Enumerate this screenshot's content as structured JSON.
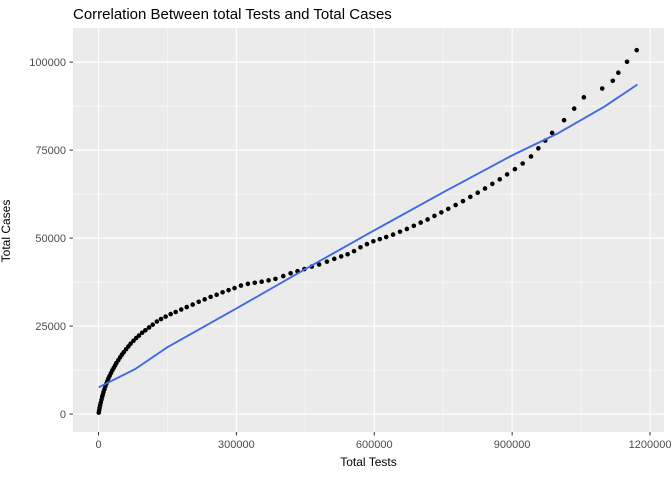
{
  "title": "Correlation Between total Tests and Total Cases",
  "colors": {
    "plot_bg": "#FFFFFF",
    "panel_bg": "#EBEBEB",
    "grid_major": "#FFFFFF",
    "grid_minor": "#F5F5F5",
    "point": "#000000",
    "smooth_line": "#4169E1",
    "tick_label": "#4D4D4D",
    "tick_mark": "#333333",
    "title_color": "#000000",
    "axis_title_color": "#000000"
  },
  "chart_data": {
    "type": "scatter",
    "title": "Correlation Between total Tests and Total Cases",
    "xlabel": "Total Tests",
    "ylabel": "Total Cases",
    "grid": true,
    "legend_position": "none",
    "xlim": [
      -55500,
      1230400
    ],
    "ylim": [
      -5100,
      109700
    ],
    "x_ticks": [
      0,
      300000,
      600000,
      900000,
      1200000
    ],
    "x_tick_labels": [
      "0",
      "300000",
      "600000",
      "900000",
      "1200000"
    ],
    "y_ticks": [
      0,
      25000,
      50000,
      75000,
      100000
    ],
    "y_tick_labels": [
      "0",
      "25000",
      "50000",
      "75000",
      "100000"
    ],
    "x_minor_ticks": [
      150000,
      450000,
      750000,
      1050000
    ],
    "y_minor_ticks": [
      12500,
      37500,
      62500,
      87500
    ],
    "points": [
      [
        500,
        400
      ],
      [
        1500,
        1100
      ],
      [
        2500,
        1800
      ],
      [
        3500,
        2500
      ],
      [
        5000,
        3300
      ],
      [
        6500,
        4100
      ],
      [
        8000,
        4900
      ],
      [
        9500,
        5600
      ],
      [
        11000,
        6300
      ],
      [
        13000,
        7100
      ],
      [
        15000,
        7900
      ],
      [
        17000,
        8600
      ],
      [
        19000,
        9300
      ],
      [
        21500,
        10100
      ],
      [
        24000,
        10800
      ],
      [
        27000,
        11600
      ],
      [
        30000,
        12400
      ],
      [
        33000,
        13100
      ],
      [
        36000,
        13800
      ],
      [
        39000,
        14500
      ],
      [
        43000,
        15300
      ],
      [
        47000,
        16100
      ],
      [
        51000,
        16900
      ],
      [
        55000,
        17600
      ],
      [
        60000,
        18400
      ],
      [
        65000,
        19200
      ],
      [
        70000,
        20000
      ],
      [
        76000,
        20800
      ],
      [
        82000,
        21600
      ],
      [
        88000,
        22300
      ],
      [
        95000,
        23100
      ],
      [
        102000,
        23800
      ],
      [
        110000,
        24600
      ],
      [
        118000,
        25400
      ],
      [
        127000,
        26300
      ],
      [
        136000,
        27000
      ],
      [
        146000,
        27700
      ],
      [
        157000,
        28400
      ],
      [
        168000,
        29000
      ],
      [
        180000,
        29700
      ],
      [
        192000,
        30400
      ],
      [
        205000,
        31100
      ],
      [
        218000,
        31900
      ],
      [
        231000,
        32600
      ],
      [
        244000,
        33300
      ],
      [
        257000,
        33900
      ],
      [
        270000,
        34600
      ],
      [
        283000,
        35200
      ],
      [
        296000,
        35800
      ],
      [
        310000,
        36500
      ],
      [
        325000,
        37000
      ],
      [
        340000,
        37300
      ],
      [
        355000,
        37600
      ],
      [
        370000,
        38000
      ],
      [
        385000,
        38400
      ],
      [
        402000,
        39200
      ],
      [
        418000,
        40000
      ],
      [
        433000,
        40600
      ],
      [
        448000,
        41200
      ],
      [
        464000,
        41900
      ],
      [
        480000,
        42500
      ],
      [
        497000,
        43300
      ],
      [
        513000,
        44100
      ],
      [
        528000,
        44800
      ],
      [
        542000,
        45400
      ],
      [
        556000,
        46300
      ],
      [
        570000,
        47400
      ],
      [
        584000,
        48300
      ],
      [
        598000,
        49100
      ],
      [
        612000,
        49700
      ],
      [
        626000,
        50300
      ],
      [
        641000,
        51000
      ],
      [
        656000,
        51800
      ],
      [
        671000,
        52600
      ],
      [
        686000,
        53500
      ],
      [
        701000,
        54400
      ],
      [
        716000,
        55300
      ],
      [
        731000,
        56300
      ],
      [
        746000,
        57300
      ],
      [
        761000,
        58300
      ],
      [
        777000,
        59400
      ],
      [
        793000,
        60500
      ],
      [
        809000,
        61700
      ],
      [
        825000,
        62900
      ],
      [
        841000,
        64100
      ],
      [
        857000,
        65400
      ],
      [
        873000,
        66700
      ],
      [
        889000,
        68100
      ],
      [
        906000,
        69600
      ],
      [
        923000,
        71200
      ],
      [
        941000,
        73200
      ],
      [
        957000,
        75500
      ],
      [
        972000,
        77700
      ],
      [
        987000,
        79900
      ],
      [
        1013000,
        83500
      ],
      [
        1035000,
        86800
      ],
      [
        1056000,
        90000
      ],
      [
        1096000,
        92500
      ],
      [
        1119000,
        94700
      ],
      [
        1131000,
        97000
      ],
      [
        1150000,
        100100
      ],
      [
        1171000,
        103400
      ]
    ],
    "smooth_line": {
      "name": "linear-fit",
      "points": [
        [
          2000,
          7700
        ],
        [
          80000,
          12800
        ],
        [
          150000,
          19000
        ],
        [
          300000,
          30000
        ],
        [
          450000,
          41200
        ],
        [
          600000,
          52200
        ],
        [
          750000,
          63000
        ],
        [
          900000,
          73500
        ],
        [
          1000000,
          79800
        ],
        [
          1100000,
          87300
        ],
        [
          1171000,
          93500
        ]
      ]
    }
  }
}
